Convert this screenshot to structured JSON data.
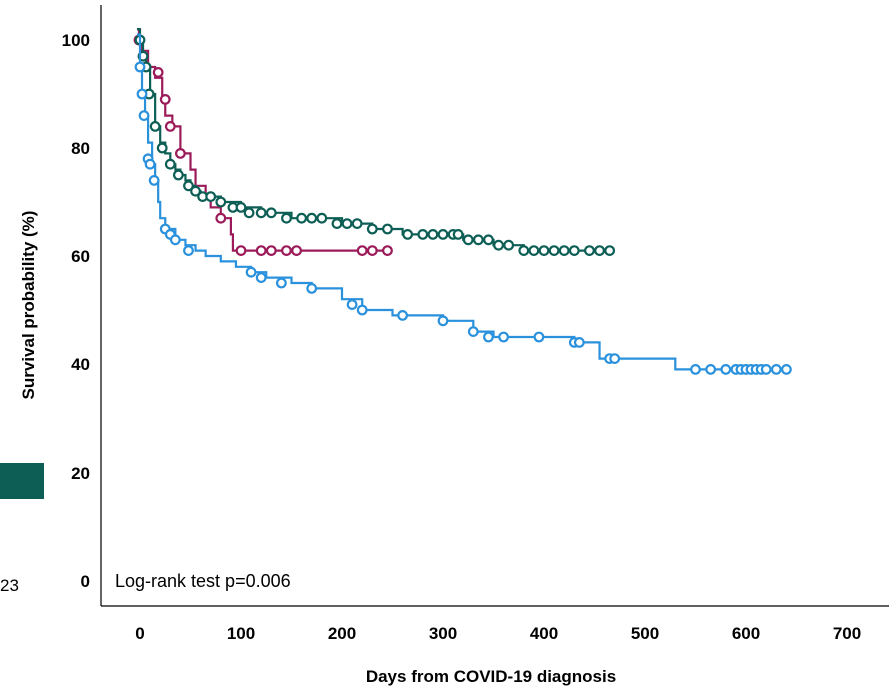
{
  "chart_data": {
    "type": "line",
    "title": "",
    "xlabel": "Days from COVID-19 diagnosis",
    "ylabel": "Survival probability (%)",
    "xlim": [
      -25,
      740
    ],
    "ylim": [
      -3,
      103
    ],
    "x_ticks": [
      0,
      100,
      200,
      300,
      400,
      500,
      600,
      700
    ],
    "y_ticks": [
      0,
      20,
      40,
      60,
      80,
      100
    ],
    "x_tick_labels": [
      "0",
      "100",
      "200",
      "300",
      "400",
      "500",
      "600",
      "700"
    ],
    "y_tick_labels": [
      "0",
      "20",
      "40",
      "60",
      "80",
      "100"
    ],
    "annotation": "Log-rank test p=0.006",
    "grid": false,
    "legend": "none",
    "series": [
      {
        "color": "#9b1b5a",
        "steps": [
          [
            -3,
            102
          ],
          [
            -1,
            100
          ],
          [
            2,
            98
          ],
          [
            8,
            95
          ],
          [
            15,
            93
          ],
          [
            22,
            89
          ],
          [
            25,
            86
          ],
          [
            32,
            84
          ],
          [
            40,
            79
          ],
          [
            50,
            76
          ],
          [
            55,
            73
          ],
          [
            65,
            71
          ],
          [
            70,
            69
          ],
          [
            80,
            67
          ],
          [
            90,
            64
          ],
          [
            92,
            61
          ],
          [
            245,
            61
          ]
        ],
        "censored": [
          [
            -1,
            100
          ],
          [
            18,
            94
          ],
          [
            25,
            89
          ],
          [
            30,
            84
          ],
          [
            40,
            79
          ],
          [
            80,
            67
          ],
          [
            100,
            61
          ],
          [
            120,
            61
          ],
          [
            130,
            61
          ],
          [
            145,
            61
          ],
          [
            155,
            61
          ],
          [
            220,
            61
          ],
          [
            230,
            61
          ],
          [
            245,
            61
          ]
        ]
      },
      {
        "color": "#0d5e55",
        "steps": [
          [
            -3,
            102
          ],
          [
            0,
            100
          ],
          [
            3,
            97
          ],
          [
            6,
            95
          ],
          [
            10,
            90
          ],
          [
            15,
            84
          ],
          [
            20,
            81
          ],
          [
            25,
            79
          ],
          [
            30,
            77
          ],
          [
            35,
            76
          ],
          [
            40,
            75
          ],
          [
            45,
            74
          ],
          [
            50,
            73
          ],
          [
            55,
            72
          ],
          [
            60,
            71
          ],
          [
            80,
            70
          ],
          [
            100,
            69
          ],
          [
            120,
            68
          ],
          [
            150,
            67
          ],
          [
            200,
            66
          ],
          [
            230,
            65
          ],
          [
            260,
            64
          ],
          [
            320,
            63
          ],
          [
            350,
            62
          ],
          [
            380,
            61
          ],
          [
            470,
            61
          ]
        ],
        "censored": [
          [
            0,
            100
          ],
          [
            3,
            97
          ],
          [
            6,
            95
          ],
          [
            9,
            90
          ],
          [
            15,
            84
          ],
          [
            22,
            80
          ],
          [
            30,
            77
          ],
          [
            38,
            75
          ],
          [
            48,
            73
          ],
          [
            55,
            72
          ],
          [
            62,
            71
          ],
          [
            70,
            71
          ],
          [
            80,
            70
          ],
          [
            92,
            69
          ],
          [
            100,
            69
          ],
          [
            108,
            68
          ],
          [
            120,
            68
          ],
          [
            130,
            68
          ],
          [
            145,
            67
          ],
          [
            160,
            67
          ],
          [
            170,
            67
          ],
          [
            180,
            67
          ],
          [
            195,
            66
          ],
          [
            205,
            66
          ],
          [
            215,
            66
          ],
          [
            230,
            65
          ],
          [
            245,
            65
          ],
          [
            265,
            64
          ],
          [
            280,
            64
          ],
          [
            290,
            64
          ],
          [
            300,
            64
          ],
          [
            310,
            64
          ],
          [
            315,
            64
          ],
          [
            325,
            63
          ],
          [
            335,
            63
          ],
          [
            345,
            63
          ],
          [
            355,
            62
          ],
          [
            365,
            62
          ],
          [
            380,
            61
          ],
          [
            390,
            61
          ],
          [
            400,
            61
          ],
          [
            410,
            61
          ],
          [
            420,
            61
          ],
          [
            430,
            61
          ],
          [
            445,
            61
          ],
          [
            455,
            61
          ],
          [
            465,
            61
          ]
        ]
      },
      {
        "color": "#2a91dc",
        "steps": [
          [
            -3,
            101
          ],
          [
            0,
            95
          ],
          [
            2,
            90
          ],
          [
            5,
            86
          ],
          [
            8,
            81
          ],
          [
            12,
            77
          ],
          [
            15,
            74
          ],
          [
            18,
            70
          ],
          [
            20,
            67
          ],
          [
            25,
            65
          ],
          [
            35,
            63
          ],
          [
            45,
            62
          ],
          [
            55,
            61
          ],
          [
            65,
            60
          ],
          [
            80,
            59
          ],
          [
            95,
            58
          ],
          [
            110,
            57
          ],
          [
            125,
            56
          ],
          [
            150,
            55
          ],
          [
            170,
            54
          ],
          [
            200,
            52
          ],
          [
            220,
            50
          ],
          [
            250,
            49
          ],
          [
            300,
            48
          ],
          [
            330,
            46
          ],
          [
            350,
            45
          ],
          [
            430,
            44
          ],
          [
            455,
            41
          ],
          [
            530,
            39
          ],
          [
            640,
            39
          ]
        ],
        "censored": [
          [
            0,
            95
          ],
          [
            2,
            90
          ],
          [
            4,
            86
          ],
          [
            8,
            78
          ],
          [
            10,
            77
          ],
          [
            14,
            74
          ],
          [
            25,
            65
          ],
          [
            30,
            64
          ],
          [
            35,
            63
          ],
          [
            48,
            61
          ],
          [
            110,
            57
          ],
          [
            120,
            56
          ],
          [
            140,
            55
          ],
          [
            170,
            54
          ],
          [
            210,
            51
          ],
          [
            220,
            50
          ],
          [
            260,
            49
          ],
          [
            300,
            48
          ],
          [
            330,
            46
          ],
          [
            345,
            45
          ],
          [
            360,
            45
          ],
          [
            395,
            45
          ],
          [
            430,
            44
          ],
          [
            435,
            44
          ],
          [
            465,
            41
          ],
          [
            470,
            41
          ],
          [
            550,
            39
          ],
          [
            565,
            39
          ],
          [
            580,
            39
          ],
          [
            590,
            39
          ],
          [
            595,
            39
          ],
          [
            600,
            39
          ],
          [
            605,
            39
          ],
          [
            610,
            39
          ],
          [
            615,
            39
          ],
          [
            620,
            39
          ],
          [
            630,
            39
          ],
          [
            640,
            39
          ]
        ]
      }
    ]
  },
  "fragments": {
    "partial_number": "23"
  }
}
